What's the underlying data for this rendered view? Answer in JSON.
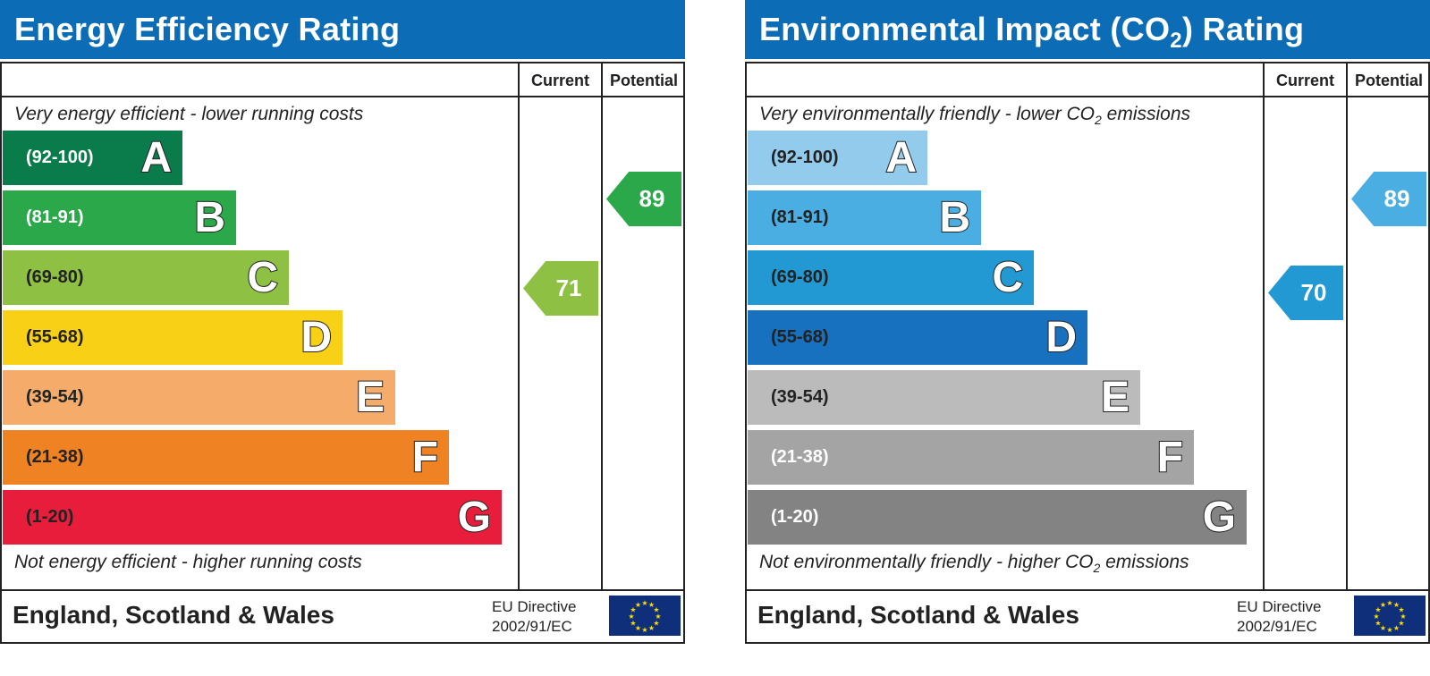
{
  "chart_data": [
    {
      "type": "bar",
      "title": "Energy Efficiency Rating",
      "columns": [
        "Current",
        "Potential"
      ],
      "top_caption": "Very energy efficient - lower running costs",
      "bottom_caption": "Not energy efficient - higher running costs",
      "bands": [
        {
          "letter": "A",
          "range": "(92-100)",
          "color": "#0a7c4b",
          "text_color": "#ffffff"
        },
        {
          "letter": "B",
          "range": "(81-91)",
          "color": "#2aa84a",
          "text_color": "#ffffff"
        },
        {
          "letter": "C",
          "range": "(69-80)",
          "color": "#8dc043",
          "text_color": "#222222"
        },
        {
          "letter": "D",
          "range": "(55-68)",
          "color": "#f8d015",
          "text_color": "#222222"
        },
        {
          "letter": "E",
          "range": "(39-54)",
          "color": "#f5ac6a",
          "text_color": "#222222"
        },
        {
          "letter": "F",
          "range": "(21-38)",
          "color": "#ef8323",
          "text_color": "#222222"
        },
        {
          "letter": "G",
          "range": "(1-20)",
          "color": "#e81d3b",
          "text_color": "#222222"
        }
      ],
      "current": {
        "value": 71,
        "color": "#8dc043"
      },
      "potential": {
        "value": 89,
        "color": "#2aa84a"
      },
      "region": "England, Scotland & Wales",
      "directive_line1": "EU Directive",
      "directive_line2": "2002/91/EC"
    },
    {
      "type": "bar",
      "title_main": "Environmental Impact (CO",
      "title_sub": "2",
      "title_tail": ") Rating",
      "columns": [
        "Current",
        "Potential"
      ],
      "top_caption_main": "Very environmentally friendly - lower CO",
      "top_caption_sub": "2",
      "top_caption_tail": " emissions",
      "bottom_caption_main": "Not environmentally friendly - higher CO",
      "bottom_caption_sub": "2",
      "bottom_caption_tail": " emissions",
      "bands": [
        {
          "letter": "A",
          "range": "(92-100)",
          "color": "#92cbec",
          "text_color": "#222222"
        },
        {
          "letter": "B",
          "range": "(81-91)",
          "color": "#4aaee2",
          "text_color": "#222222"
        },
        {
          "letter": "C",
          "range": "(69-80)",
          "color": "#2399d3",
          "text_color": "#222222"
        },
        {
          "letter": "D",
          "range": "(55-68)",
          "color": "#1771be",
          "text_color": "#222222"
        },
        {
          "letter": "E",
          "range": "(39-54)",
          "color": "#bcbbbb",
          "text_color": "#222222"
        },
        {
          "letter": "F",
          "range": "(21-38)",
          "color": "#a4a4a4",
          "text_color": "#ffffff"
        },
        {
          "letter": "G",
          "range": "(1-20)",
          "color": "#838383",
          "text_color": "#ffffff"
        }
      ],
      "current": {
        "value": 70,
        "color": "#2399d3"
      },
      "potential": {
        "value": 89,
        "color": "#4aaee2"
      },
      "region": "England, Scotland & Wales",
      "directive_line1": "EU Directive",
      "directive_line2": "2002/91/EC"
    }
  ],
  "colors": {
    "title_bar": "#0c6db6",
    "eu_flag": "#0f2f7a",
    "eu_stars": "#ffdd00"
  }
}
